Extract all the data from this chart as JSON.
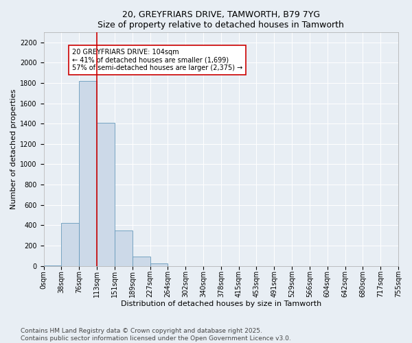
{
  "title": "20, GREYFRIARS DRIVE, TAMWORTH, B79 7YG",
  "subtitle": "Size of property relative to detached houses in Tamworth",
  "xlabel": "Distribution of detached houses by size in Tamworth",
  "ylabel": "Number of detached properties",
  "bin_labels": [
    "0sqm",
    "38sqm",
    "76sqm",
    "113sqm",
    "151sqm",
    "189sqm",
    "227sqm",
    "264sqm",
    "302sqm",
    "340sqm",
    "378sqm",
    "415sqm",
    "453sqm",
    "491sqm",
    "529sqm",
    "566sqm",
    "604sqm",
    "642sqm",
    "680sqm",
    "717sqm",
    "755sqm"
  ],
  "bar_values": [
    5,
    420,
    1820,
    1410,
    350,
    90,
    25,
    0,
    0,
    0,
    0,
    0,
    0,
    0,
    0,
    0,
    0,
    0,
    0,
    0
  ],
  "bar_color": "#ccd9e8",
  "bar_edge_color": "#6699bb",
  "vline_color": "#cc0000",
  "annotation_text": "20 GREYFRIARS DRIVE: 104sqm\n← 41% of detached houses are smaller (1,699)\n57% of semi-detached houses are larger (2,375) →",
  "annotation_box_color": "#ffffff",
  "annotation_box_edge": "#cc0000",
  "ylim": [
    0,
    2300
  ],
  "yticks": [
    0,
    200,
    400,
    600,
    800,
    1000,
    1200,
    1400,
    1600,
    1800,
    2000,
    2200
  ],
  "background_color": "#e8eef4",
  "plot_bg_color": "#e8eef4",
  "footer": "Contains HM Land Registry data © Crown copyright and database right 2025.\nContains public sector information licensed under the Open Government Licence v3.0.",
  "title_fontsize": 9,
  "xlabel_fontsize": 8,
  "ylabel_fontsize": 8,
  "tick_fontsize": 7,
  "annotation_fontsize": 7,
  "footer_fontsize": 6.5
}
